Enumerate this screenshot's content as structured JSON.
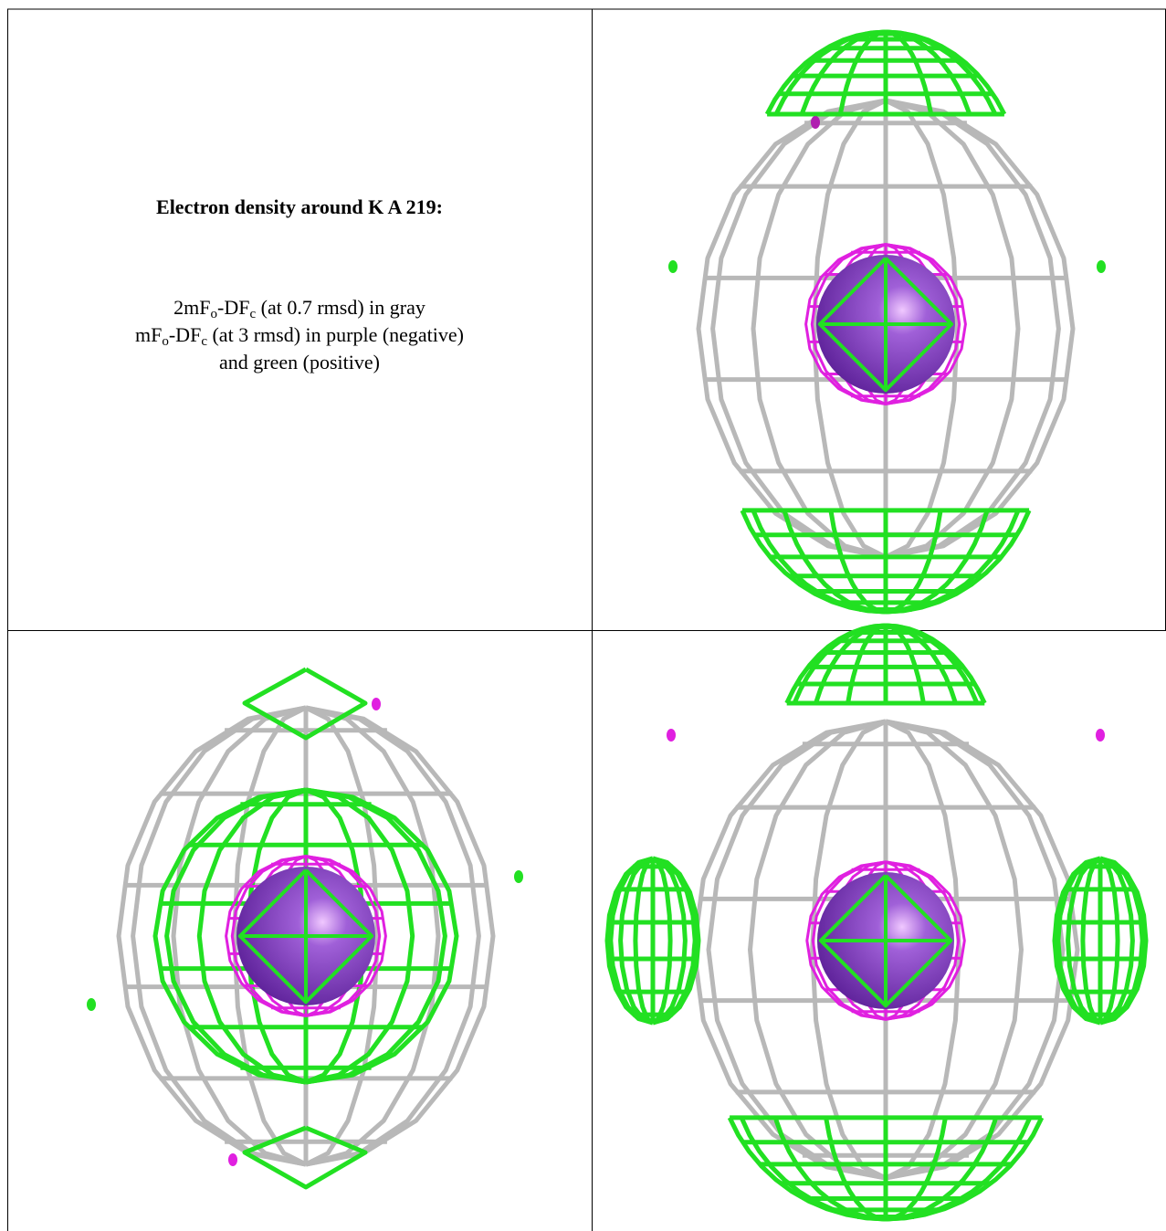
{
  "caption": {
    "title": "Electron density around K A 219:",
    "lines": [
      [
        "2mF",
        "o",
        "-DF",
        "c",
        " (at 0.7 rmsd) in gray"
      ],
      [
        "mF",
        "o",
        "-DF",
        "c",
        " (at 3 rmsd) in purple (negative)"
      ],
      [
        "and green (positive)"
      ]
    ]
  }
}
